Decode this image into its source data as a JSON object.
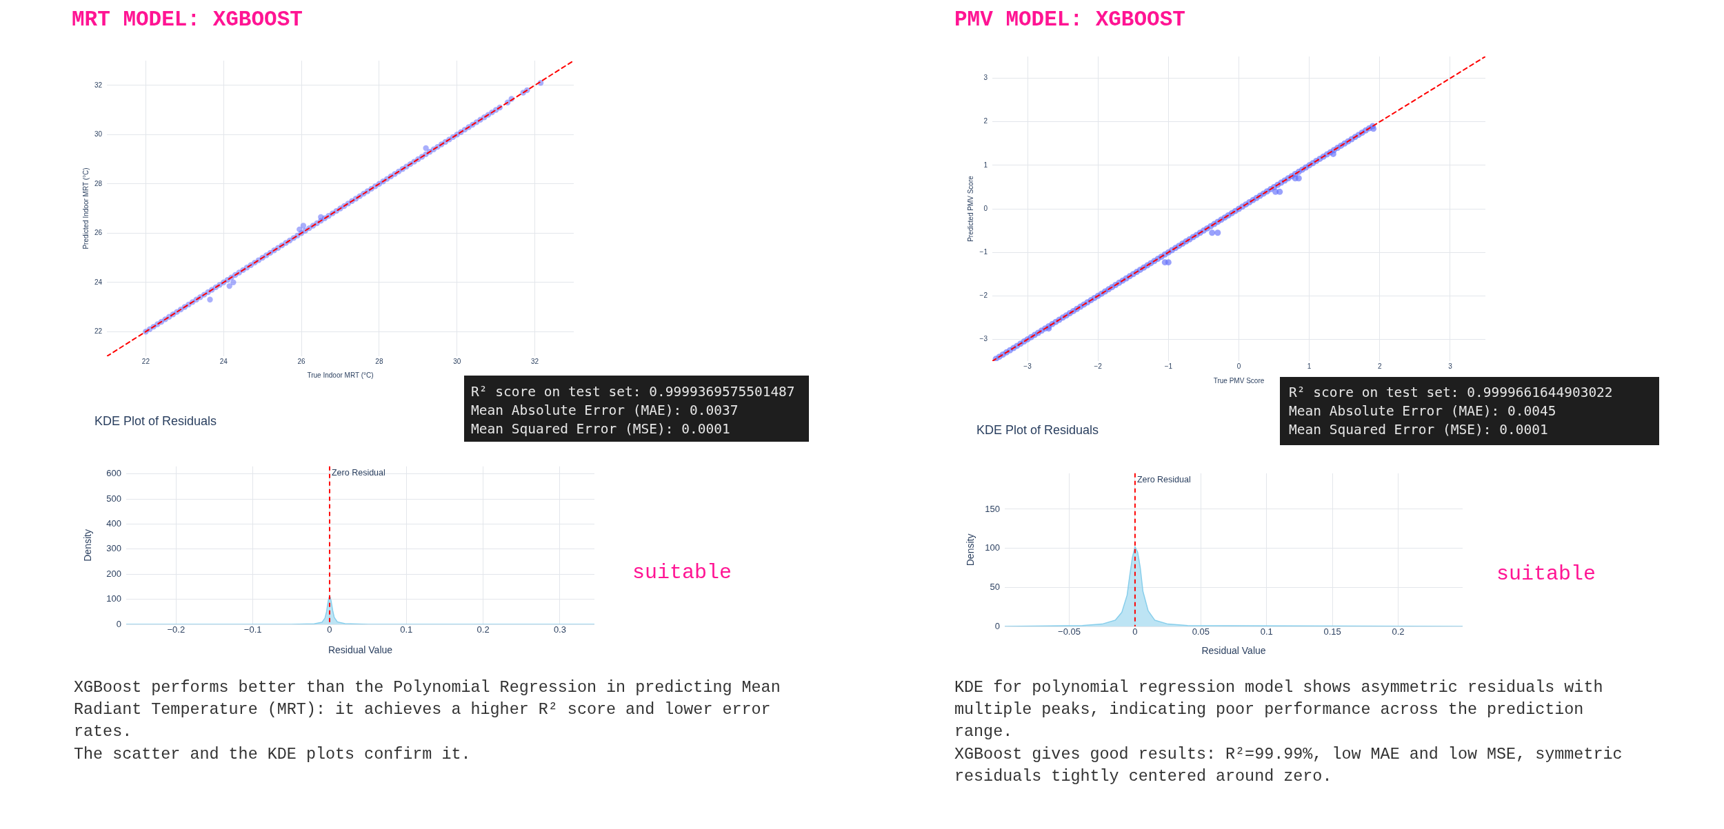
{
  "chart_data": [
    {
      "type": "scatter",
      "title": "MRT MODEL: XGBOOST",
      "xlabel": "True Indoor MRT (°C)",
      "ylabel": "Predicted Indoor MRT (°C)",
      "xlim": [
        21,
        33
      ],
      "ylim": [
        21,
        33
      ],
      "xticks": [
        22,
        24,
        26,
        28,
        30,
        32
      ],
      "yticks": [
        22,
        24,
        26,
        28,
        30,
        32
      ],
      "grid": true,
      "series": [
        {
          "type": "scatter",
          "color": "#636efa",
          "marker": "circle",
          "x": [
            22,
            22.1,
            22.2,
            22.3,
            22.4,
            22.5,
            22.6,
            22.7,
            22.8,
            22.9,
            23,
            23.1,
            23.2,
            23.3,
            23.4,
            23.5,
            23.6,
            23.7,
            23.8,
            23.9,
            24,
            24.1,
            24.2,
            24.3,
            24.4,
            24.5,
            24.6,
            24.7,
            24.8,
            24.9,
            25,
            25.1,
            25.2,
            25.3,
            25.4,
            25.5,
            25.6,
            25.7,
            25.8,
            25.9,
            26,
            26.1,
            26.2,
            26.3,
            26.4,
            26.5,
            26.6,
            26.7,
            26.8,
            26.9,
            27,
            27.1,
            27.2,
            27.3,
            27.4,
            27.5,
            27.6,
            27.7,
            27.8,
            27.9,
            28,
            28.1,
            28.2,
            28.3,
            28.4,
            28.5,
            28.6,
            28.7,
            28.8,
            28.9,
            29,
            29.1,
            29.2,
            29.3,
            29.4,
            29.5,
            29.6,
            29.7,
            29.8,
            29.9,
            30,
            30.1,
            30.2,
            30.3,
            30.4,
            30.5,
            30.6,
            30.7,
            30.8,
            30.9,
            31,
            31.1,
            31.3,
            31.4,
            31.7,
            31.8,
            32.15,
            23.65,
            24.25,
            24.15,
            25.95,
            26.05,
            26.5,
            29.2
          ],
          "values": [
            22,
            22.1,
            22.2,
            22.3,
            22.4,
            22.5,
            22.6,
            22.7,
            22.8,
            22.9,
            23,
            23.1,
            23.2,
            23.3,
            23.4,
            23.5,
            23.6,
            23.7,
            23.8,
            23.9,
            24,
            24.1,
            24.2,
            24.3,
            24.4,
            24.5,
            24.6,
            24.7,
            24.8,
            24.9,
            25,
            25.1,
            25.2,
            25.3,
            25.4,
            25.5,
            25.6,
            25.7,
            25.8,
            25.9,
            26,
            26.1,
            26.2,
            26.3,
            26.4,
            26.5,
            26.6,
            26.7,
            26.8,
            26.9,
            27,
            27.1,
            27.2,
            27.3,
            27.4,
            27.5,
            27.6,
            27.7,
            27.8,
            27.9,
            28,
            28.1,
            28.2,
            28.3,
            28.4,
            28.5,
            28.6,
            28.7,
            28.8,
            28.9,
            29,
            29.1,
            29.2,
            29.3,
            29.4,
            29.5,
            29.6,
            29.7,
            29.8,
            29.9,
            30,
            30.1,
            30.2,
            30.3,
            30.4,
            30.5,
            30.6,
            30.7,
            30.8,
            30.9,
            31,
            31.1,
            31.3,
            31.45,
            31.7,
            31.8,
            32.1,
            23.3,
            24,
            23.85,
            26.15,
            26.3,
            26.65,
            29.45
          ]
        },
        {
          "type": "line",
          "color": "#ff0000",
          "line_style": "dashed",
          "marker": "none",
          "x": [
            21,
            33
          ],
          "values": [
            21,
            33
          ]
        }
      ]
    },
    {
      "type": "other",
      "annotations": [
        "R² score on test set: 0.9999369575501487",
        "Mean Absolute Error (MAE): 0.0037",
        "Mean Squared Error (MSE): 0.0001"
      ]
    },
    {
      "type": "area",
      "title": "KDE Plot of Residuals",
      "xlabel": "Residual Value",
      "ylabel": "Density",
      "xlim": [
        -0.265,
        0.345
      ],
      "ylim": [
        0,
        630
      ],
      "xticks": [
        {
          "value": -0.2,
          "label": "−0.2"
        },
        {
          "value": -0.1,
          "label": "−0.1"
        },
        0,
        0.1,
        0.2,
        0.3
      ],
      "yticks": [
        0,
        100,
        200,
        300,
        400,
        500,
        600
      ],
      "grid": true,
      "ref_lines": [
        {
          "axis": "x",
          "value": 0,
          "label": "Zero Residual",
          "color": "#ff0000",
          "line_style": "dashed"
        }
      ],
      "series": [
        {
          "color": "#87ceeb",
          "x": [
            -0.265,
            -0.05,
            -0.02,
            -0.01,
            -0.006,
            -0.004,
            -0.002,
            -0.001,
            0,
            0.001,
            0.002,
            0.004,
            0.006,
            0.01,
            0.02,
            0.05,
            0.345
          ],
          "values": [
            0,
            0,
            2,
            8,
            25,
            50,
            90,
            105,
            112,
            106,
            92,
            55,
            28,
            10,
            3,
            0,
            0
          ]
        }
      ]
    },
    {
      "type": "other",
      "title": "suitable",
      "annotations": [
        "XGBoost performs better than the Polynomial Regression in predicting Mean Radiant Temperature (MRT): it achieves a higher R² score and lower error rates.",
        "The scatter and the KDE plots confirm it."
      ]
    },
    {
      "type": "scatter",
      "title": "PMV MODEL: XGBOOST",
      "xlabel": "True PMV Score",
      "ylabel": "Predicted PMV Score",
      "xlim": [
        -3.5,
        3.5
      ],
      "ylim": [
        -3.5,
        3.5
      ],
      "xticks": [
        {
          "value": -3,
          "label": "−3"
        },
        {
          "value": -2,
          "label": "−2"
        },
        {
          "value": -1,
          "label": "−1"
        },
        0,
        1,
        2,
        3
      ],
      "yticks": [
        {
          "value": -3,
          "label": "−3"
        },
        {
          "value": -2,
          "label": "−2"
        },
        {
          "value": -1,
          "label": "−1"
        },
        0,
        1,
        2,
        3
      ],
      "grid": true,
      "series": [
        {
          "type": "scatter",
          "color": "#636efa",
          "marker": "circle",
          "x": [
            -3.45,
            -3.4,
            -3.35,
            -3.3,
            -3.25,
            -3.2,
            -3.15,
            -3.1,
            -3.05,
            -3,
            -2.95,
            -2.9,
            -2.85,
            -2.8,
            -2.75,
            -2.7,
            -2.65,
            -2.6,
            -2.55,
            -2.5,
            -2.45,
            -2.4,
            -2.35,
            -2.3,
            -2.25,
            -2.2,
            -2.15,
            -2.1,
            -2.05,
            -2,
            -1.95,
            -1.9,
            -1.85,
            -1.8,
            -1.75,
            -1.7,
            -1.65,
            -1.6,
            -1.55,
            -1.5,
            -1.45,
            -1.4,
            -1.35,
            -1.3,
            -1.25,
            -1.2,
            -1.15,
            -1.1,
            -1.05,
            -1,
            -0.95,
            -0.9,
            -0.85,
            -0.8,
            -0.75,
            -0.7,
            -0.65,
            -0.6,
            -0.55,
            -0.5,
            -0.45,
            -0.4,
            -0.35,
            -0.3,
            -0.25,
            -0.2,
            -0.15,
            -0.1,
            -0.05,
            0,
            0.05,
            0.1,
            0.15,
            0.2,
            0.25,
            0.3,
            0.35,
            0.4,
            0.45,
            0.5,
            0.55,
            0.6,
            0.65,
            0.7,
            0.75,
            0.8,
            0.85,
            0.9,
            0.95,
            1,
            1.05,
            1.1,
            1.15,
            1.2,
            1.25,
            1.3,
            1.35,
            1.4,
            1.45,
            1.5,
            1.55,
            1.6,
            1.65,
            1.7,
            1.75,
            1.8,
            1.85,
            1.9,
            -2.7,
            -1.05,
            -1,
            -0.38,
            -0.3,
            0.52,
            0.58,
            0.8,
            0.85,
            1.34,
            1.91
          ],
          "values": [
            -3.45,
            -3.4,
            -3.35,
            -3.3,
            -3.25,
            -3.2,
            -3.15,
            -3.1,
            -3.05,
            -3,
            -2.95,
            -2.9,
            -2.85,
            -2.8,
            -2.75,
            -2.7,
            -2.65,
            -2.6,
            -2.55,
            -2.5,
            -2.45,
            -2.4,
            -2.35,
            -2.3,
            -2.25,
            -2.2,
            -2.15,
            -2.1,
            -2.05,
            -2,
            -1.95,
            -1.9,
            -1.85,
            -1.8,
            -1.75,
            -1.7,
            -1.65,
            -1.6,
            -1.55,
            -1.5,
            -1.45,
            -1.4,
            -1.35,
            -1.3,
            -1.25,
            -1.2,
            -1.15,
            -1.1,
            -1.05,
            -1,
            -0.95,
            -0.9,
            -0.85,
            -0.8,
            -0.75,
            -0.7,
            -0.65,
            -0.6,
            -0.55,
            -0.5,
            -0.45,
            -0.4,
            -0.35,
            -0.3,
            -0.25,
            -0.2,
            -0.15,
            -0.1,
            -0.05,
            0,
            0.05,
            0.1,
            0.15,
            0.2,
            0.25,
            0.3,
            0.35,
            0.4,
            0.45,
            0.5,
            0.55,
            0.6,
            0.65,
            0.7,
            0.75,
            0.8,
            0.85,
            0.9,
            0.95,
            1,
            1.05,
            1.1,
            1.15,
            1.2,
            1.25,
            1.3,
            1.35,
            1.4,
            1.45,
            1.5,
            1.55,
            1.6,
            1.65,
            1.7,
            1.75,
            1.8,
            1.85,
            1.9,
            -2.75,
            -1.23,
            -1.23,
            -0.55,
            -0.55,
            0.39,
            0.39,
            0.7,
            0.7,
            1.26,
            1.84
          ]
        },
        {
          "type": "line",
          "color": "#ff0000",
          "line_style": "dashed",
          "marker": "none",
          "x": [
            -3.5,
            3.5
          ],
          "values": [
            -3.5,
            3.5
          ]
        }
      ]
    },
    {
      "type": "other",
      "annotations": [
        "R² score on test set: 0.9999661644903022",
        "Mean Absolute Error (MAE): 0.0045",
        "Mean Squared Error (MSE): 0.0001"
      ]
    },
    {
      "type": "area",
      "title": "KDE Plot of Residuals",
      "xlabel": "Residual Value",
      "ylabel": "Density",
      "xlim": [
        -0.099,
        0.249
      ],
      "ylim": [
        0,
        196
      ],
      "xticks": [
        {
          "value": -0.05,
          "label": "−0.05"
        },
        0,
        0.05,
        0.1,
        0.15,
        0.2
      ],
      "yticks": [
        0,
        50,
        100,
        150
      ],
      "grid": true,
      "ref_lines": [
        {
          "axis": "x",
          "value": 0,
          "label": "Zero Residual",
          "color": "#ff0000",
          "line_style": "dashed"
        }
      ],
      "series": [
        {
          "color": "#87ceeb",
          "x": [
            -0.099,
            -0.04,
            -0.025,
            -0.015,
            -0.01,
            -0.006,
            -0.004,
            -0.002,
            0,
            0.002,
            0.004,
            0.006,
            0.01,
            0.015,
            0.025,
            0.04,
            0.249
          ],
          "values": [
            0,
            1,
            3,
            8,
            18,
            40,
            65,
            88,
            102,
            95,
            75,
            45,
            20,
            8,
            3,
            1,
            0
          ]
        }
      ]
    },
    {
      "type": "other",
      "title": "suitable",
      "annotations": [
        "KDE for polynomial regression model shows asymmetric residuals with multiple peaks, indicating poor performance across the prediction range.",
        "XGBoost gives good results: R²=99.99%, low MAE and low MSE, symmetric residuals tightly centered around zero."
      ]
    }
  ]
}
